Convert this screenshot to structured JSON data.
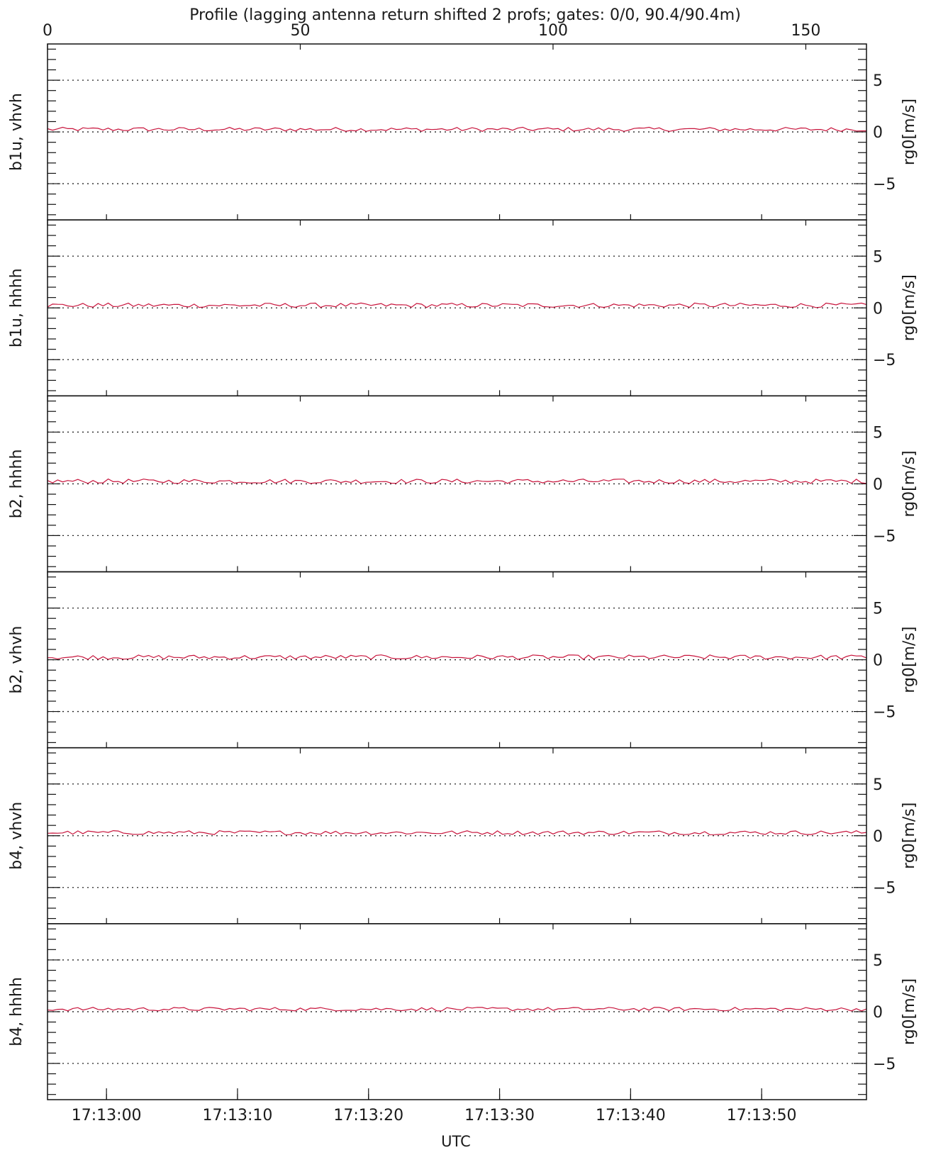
{
  "chart_data": {
    "type": "line",
    "title": "Profile (lagging antenna return shifted 2 profs; gates: 0/0, 90.4/90.4m)",
    "top_axis": {
      "range": [
        0,
        162
      ],
      "ticks": [
        0,
        50,
        100,
        150
      ]
    },
    "xlabel": "UTC",
    "x_time_range": [
      "17:12:55.5",
      "17:13:58"
    ],
    "x_time_ticks": [
      "17:13:00",
      "17:13:10",
      "17:13:20",
      "17:13:30",
      "17:13:40",
      "17:13:50"
    ],
    "ylabel": "rg0[m/s]",
    "ylim": [
      -8.5,
      8.5
    ],
    "yticks": [
      -5,
      0,
      5
    ],
    "ytick_labels": [
      "−5",
      "0",
      "5"
    ],
    "grid_lines": [
      -5,
      0,
      5
    ],
    "line_color": "#c8143c",
    "panels": [
      {
        "label": "b1u, vhvh",
        "mean": 0.25,
        "jitter": 0.2
      },
      {
        "label": "b1u, hhhh",
        "mean": 0.25,
        "jitter": 0.22
      },
      {
        "label": "b2, hhhh",
        "mean": 0.25,
        "jitter": 0.22
      },
      {
        "label": "b2, vhvh",
        "mean": 0.25,
        "jitter": 0.22
      },
      {
        "label": "b4, vhvh",
        "mean": 0.3,
        "jitter": 0.2
      },
      {
        "label": "b4, hhhh",
        "mean": 0.25,
        "jitter": 0.18
      }
    ]
  }
}
